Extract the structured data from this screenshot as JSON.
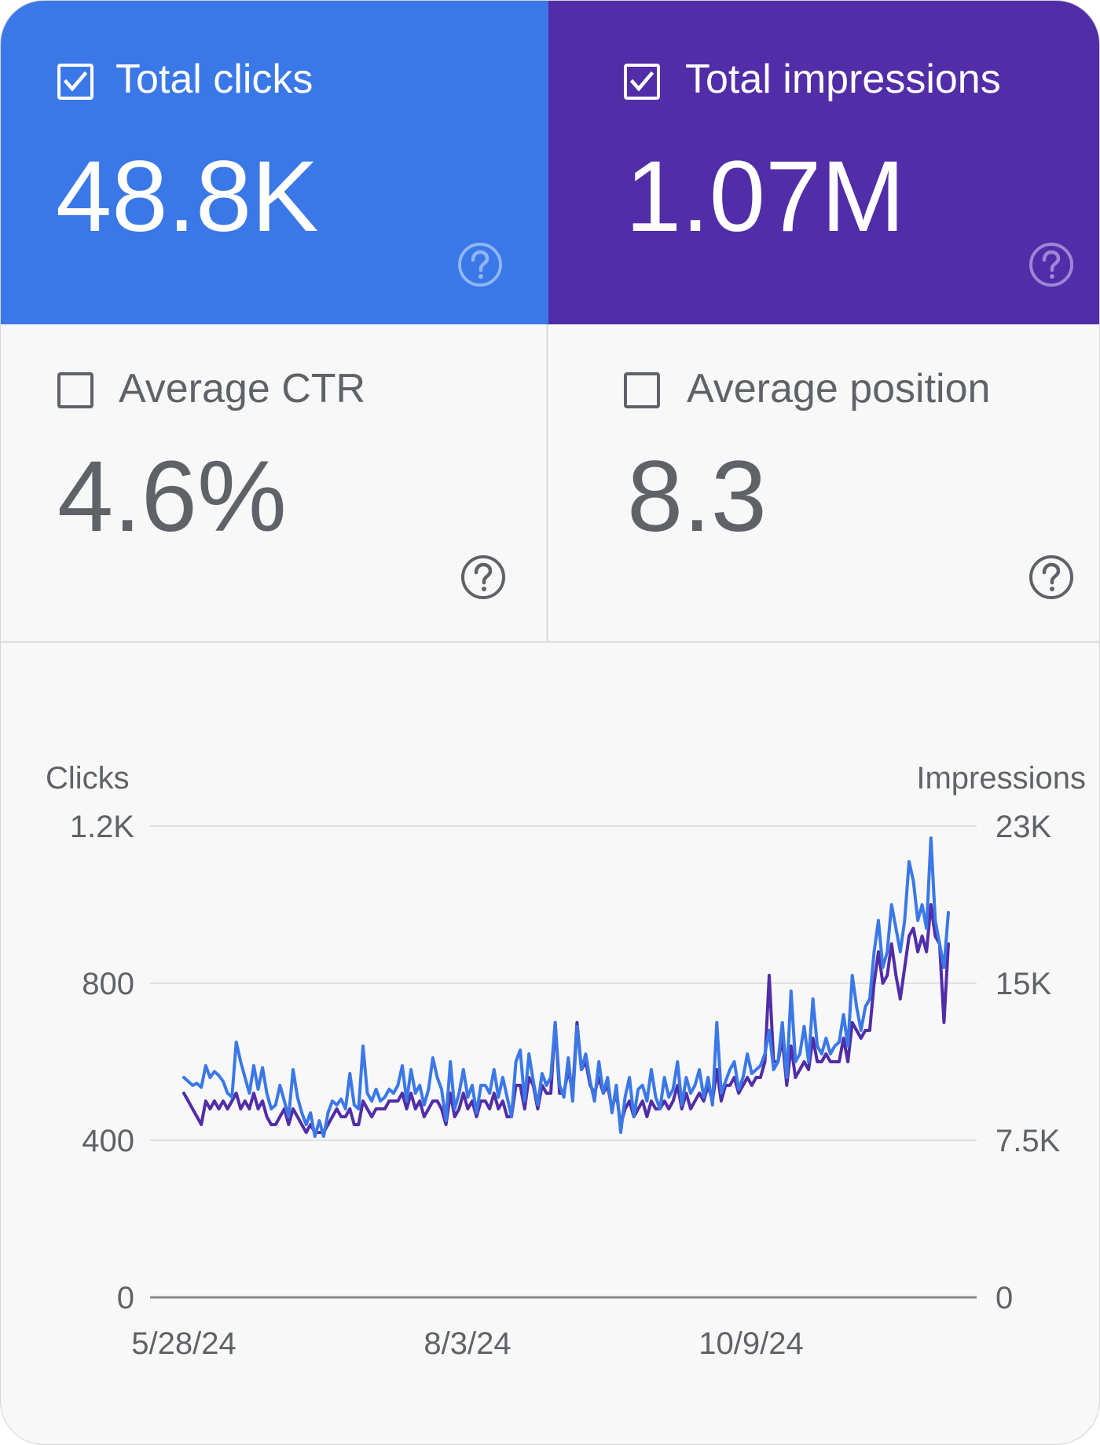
{
  "cards": {
    "clicks": {
      "label": "Total clicks",
      "value": "48.8K",
      "checked": true,
      "color": "#3b78e7"
    },
    "impressions": {
      "label": "Total impressions",
      "value": "1.07M",
      "checked": true,
      "color": "#512da8"
    },
    "ctr": {
      "label": "Average CTR",
      "value": "4.6%",
      "checked": false
    },
    "position": {
      "label": "Average position",
      "value": "8.3",
      "checked": false
    }
  },
  "icons": {
    "checkbox_checked": "checkbox-checked-icon",
    "checkbox_empty": "checkbox-empty-icon",
    "help": "help-circle-icon"
  },
  "chart_data": {
    "type": "line",
    "left_axis_label": "Clicks",
    "right_axis_label": "Impressions",
    "left_ticks": [
      {
        "value": 0,
        "label": "0"
      },
      {
        "value": 400,
        "label": "400"
      },
      {
        "value": 800,
        "label": "800"
      },
      {
        "value": 1200,
        "label": "1.2K"
      }
    ],
    "right_ticks": [
      {
        "value": 0,
        "label": "0"
      },
      {
        "value": 7500,
        "label": "7.5K"
      },
      {
        "value": 15000,
        "label": "15K"
      },
      {
        "value": 22500,
        "label": "23K"
      }
    ],
    "left_range": [
      0,
      1200
    ],
    "right_range": [
      0,
      22500
    ],
    "x_ticks": [
      "5/28/24",
      "8/3/24",
      "10/9/24"
    ],
    "grid": true,
    "series": [
      {
        "name": "Clicks",
        "axis": "left",
        "color": "#3b78e7",
        "values": [
          560,
          550,
          540,
          545,
          535,
          590,
          560,
          575,
          565,
          550,
          520,
          510,
          650,
          600,
          560,
          520,
          590,
          530,
          585,
          520,
          480,
          490,
          540,
          500,
          460,
          580,
          510,
          470,
          440,
          470,
          410,
          450,
          410,
          470,
          500,
          490,
          505,
          480,
          570,
          490,
          480,
          640,
          520,
          500,
          530,
          500,
          510,
          530,
          520,
          540,
          590,
          500,
          580,
          520,
          540,
          490,
          530,
          610,
          560,
          530,
          450,
          600,
          480,
          520,
          580,
          510,
          540,
          470,
          540,
          540,
          520,
          580,
          510,
          560,
          510,
          460,
          600,
          630,
          500,
          620,
          550,
          490,
          570,
          540,
          560,
          700,
          540,
          510,
          610,
          500,
          690,
          580,
          620,
          550,
          500,
          600,
          520,
          560,
          470,
          540,
          420,
          510,
          560,
          460,
          530,
          540,
          500,
          580,
          510,
          480,
          560,
          510,
          530,
          600,
          490,
          560,
          520,
          540,
          580,
          510,
          560,
          490,
          700,
          520,
          550,
          580,
          600,
          530,
          560,
          620,
          570,
          580,
          590,
          620,
          680,
          580,
          600,
          700,
          560,
          780,
          600,
          620,
          690,
          600,
          760,
          640,
          620,
          660,
          620,
          640,
          650,
          720,
          640,
          820,
          740,
          680,
          740,
          760,
          880,
          960,
          840,
          880,
          1000,
          940,
          880,
          960,
          1110,
          1060,
          960,
          1000,
          940,
          1170,
          960,
          900,
          840,
          980
        ]
      },
      {
        "name": "Impressions",
        "axis": "right",
        "color": "#512da8",
        "values": [
          9750,
          9375,
          9000,
          8625,
          8250,
          9375,
          9000,
          9375,
          9000,
          9375,
          9000,
          9375,
          9750,
          9000,
          9375,
          9000,
          9750,
          9000,
          9375,
          8625,
          8250,
          8250,
          8625,
          9000,
          8250,
          9000,
          8625,
          8250,
          7875,
          8250,
          7875,
          7875,
          7875,
          8250,
          8625,
          9000,
          8625,
          8625,
          9000,
          8250,
          8250,
          9375,
          9000,
          8625,
          9000,
          9000,
          9000,
          9375,
          9375,
          9375,
          9750,
          9000,
          9750,
          9000,
          9375,
          8625,
          9000,
          9375,
          9375,
          9000,
          8250,
          9750,
          8625,
          9000,
          9750,
          9000,
          9375,
          8625,
          9375,
          9375,
          9000,
          9750,
          9000,
          9375,
          8625,
          8625,
          10125,
          10125,
          9000,
          10500,
          10125,
          9000,
          10125,
          9750,
          9750,
          13125,
          9750,
          9750,
          10875,
          9750,
          13125,
          10875,
          11250,
          10125,
          9750,
          10500,
          9750,
          10125,
          9000,
          9750,
          8250,
          9000,
          9375,
          8625,
          9000,
          9375,
          8625,
          9375,
          9000,
          9000,
          9375,
          9000,
          9375,
          10125,
          9000,
          9750,
          9000,
          9375,
          9750,
          9375,
          10125,
          9375,
          10875,
          9375,
          10125,
          10125,
          10500,
          9750,
          10125,
          10500,
          10125,
          10500,
          10500,
          11250,
          15375,
          11250,
          11250,
          12375,
          10125,
          12000,
          10500,
          10875,
          11250,
          10875,
          12375,
          11250,
          11250,
          11625,
          11250,
          11250,
          11250,
          12375,
          11250,
          13125,
          12750,
          12375,
          12750,
          12750,
          15000,
          16500,
          15000,
          15375,
          16875,
          15375,
          14250,
          15750,
          17250,
          17625,
          16500,
          17250,
          16500,
          18750,
          17250,
          16875,
          13125,
          16875
        ]
      }
    ]
  }
}
